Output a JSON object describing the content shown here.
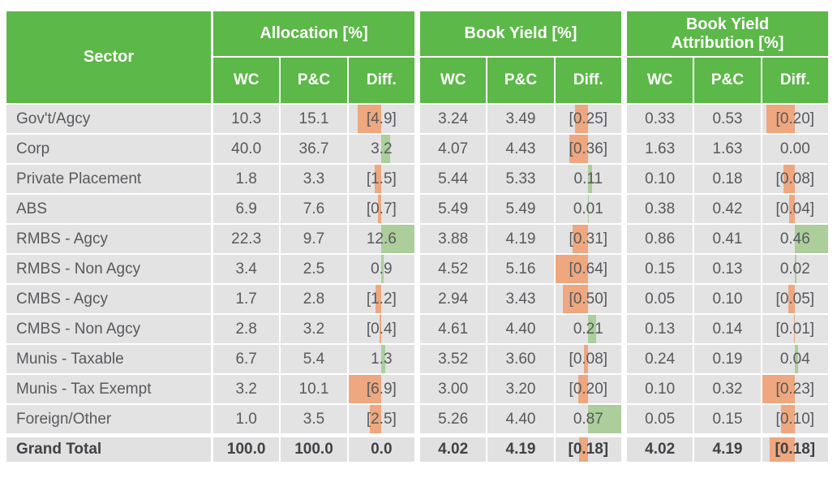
{
  "colors": {
    "header_green": "#5cb848",
    "row_bg": "#e3e3e4",
    "total_row_bg": "#e1e1e2",
    "negative_bar_orange": "#eea77e",
    "positive_bar_green": "#abce9b",
    "body_text": "#58595c",
    "total_text": "#414246",
    "header_text": "#ffffff"
  },
  "chart_data": {
    "type": "table",
    "title": "",
    "sector_header": "Sector",
    "groups": [
      {
        "label": "Allocation [%]",
        "subcols": [
          "WC",
          "P&C",
          "Diff."
        ],
        "neg_axis_max": 6.9,
        "pos_axis_max": 12.6
      },
      {
        "label": "Book Yield [%]",
        "subcols": [
          "WC",
          "P&C",
          "Diff."
        ],
        "neg_axis_max": 0.64,
        "pos_axis_max": 0.87
      },
      {
        "label": "Book Yield\nAttribution [%]",
        "subcols": [
          "WC",
          "P&C",
          "Diff."
        ],
        "neg_axis_max": 0.23,
        "pos_axis_max": 0.46
      }
    ],
    "diff_bar_note": "diff bars pivot at column center; negatives extend left (orange), positives right (green), scaled to each column's max magnitude",
    "rows": [
      {
        "sector": "Gov't/Agcy",
        "cells": [
          "10.3",
          "15.1",
          "[4.9]",
          "3.24",
          "3.49",
          "[0.25]",
          "0.33",
          "0.53",
          "[0.20]"
        ],
        "diffs": [
          -4.9,
          -0.25,
          -0.2
        ]
      },
      {
        "sector": "Corp",
        "cells": [
          "40.0",
          "36.7",
          "3.2",
          "4.07",
          "4.43",
          "[0.36]",
          "1.63",
          "1.63",
          "0.00"
        ],
        "diffs": [
          3.2,
          -0.36,
          0.0
        ]
      },
      {
        "sector": "Private Placement",
        "cells": [
          "1.8",
          "3.3",
          "[1.5]",
          "5.44",
          "5.33",
          "0.11",
          "0.10",
          "0.18",
          "[0.08]"
        ],
        "diffs": [
          -1.5,
          0.11,
          -0.08
        ]
      },
      {
        "sector": "ABS",
        "cells": [
          "6.9",
          "7.6",
          "[0.7]",
          "5.49",
          "5.49",
          "0.01",
          "0.38",
          "0.42",
          "[0.04]"
        ],
        "diffs": [
          -0.7,
          0.01,
          -0.04
        ]
      },
      {
        "sector": "RMBS - Agcy",
        "cells": [
          "22.3",
          "9.7",
          "12.6",
          "3.88",
          "4.19",
          "[0.31]",
          "0.86",
          "0.41",
          "0.46"
        ],
        "diffs": [
          12.6,
          -0.31,
          0.46
        ]
      },
      {
        "sector": "RMBS - Non Agcy",
        "cells": [
          "3.4",
          "2.5",
          "0.9",
          "4.52",
          "5.16",
          "[0.64]",
          "0.15",
          "0.13",
          "0.02"
        ],
        "diffs": [
          0.9,
          -0.64,
          0.02
        ]
      },
      {
        "sector": "CMBS - Agcy",
        "cells": [
          "1.7",
          "2.8",
          "[1.2]",
          "2.94",
          "3.43",
          "[0.50]",
          "0.05",
          "0.10",
          "[0.05]"
        ],
        "diffs": [
          -1.2,
          -0.5,
          -0.05
        ]
      },
      {
        "sector": "CMBS - Non Agcy",
        "cells": [
          "2.8",
          "3.2",
          "[0.4]",
          "4.61",
          "4.40",
          "0.21",
          "0.13",
          "0.14",
          "[0.01]"
        ],
        "diffs": [
          -0.4,
          0.21,
          -0.01
        ]
      },
      {
        "sector": "Munis - Taxable",
        "cells": [
          "6.7",
          "5.4",
          "1.3",
          "3.52",
          "3.60",
          "[0.08]",
          "0.24",
          "0.19",
          "0.04"
        ],
        "diffs": [
          1.3,
          -0.08,
          0.04
        ]
      },
      {
        "sector": "Munis - Tax Exempt",
        "cells": [
          "3.2",
          "10.1",
          "[6.9]",
          "3.00",
          "3.20",
          "[0.20]",
          "0.10",
          "0.32",
          "[0.23]"
        ],
        "diffs": [
          -6.9,
          -0.2,
          -0.23
        ]
      },
      {
        "sector": "Foreign/Other",
        "cells": [
          "1.0",
          "3.5",
          "[2.5]",
          "5.26",
          "4.40",
          "0.87",
          "0.05",
          "0.15",
          "[0.10]"
        ],
        "diffs": [
          -2.5,
          0.87,
          -0.1
        ]
      }
    ],
    "grand_total": {
      "sector": "Grand Total",
      "cells": [
        "100.0",
        "100.0",
        "0.0",
        "4.02",
        "4.19",
        "[0.18]",
        "4.02",
        "4.19",
        "[0.18]"
      ],
      "diffs": [
        0.0,
        -0.18,
        -0.18
      ]
    }
  }
}
